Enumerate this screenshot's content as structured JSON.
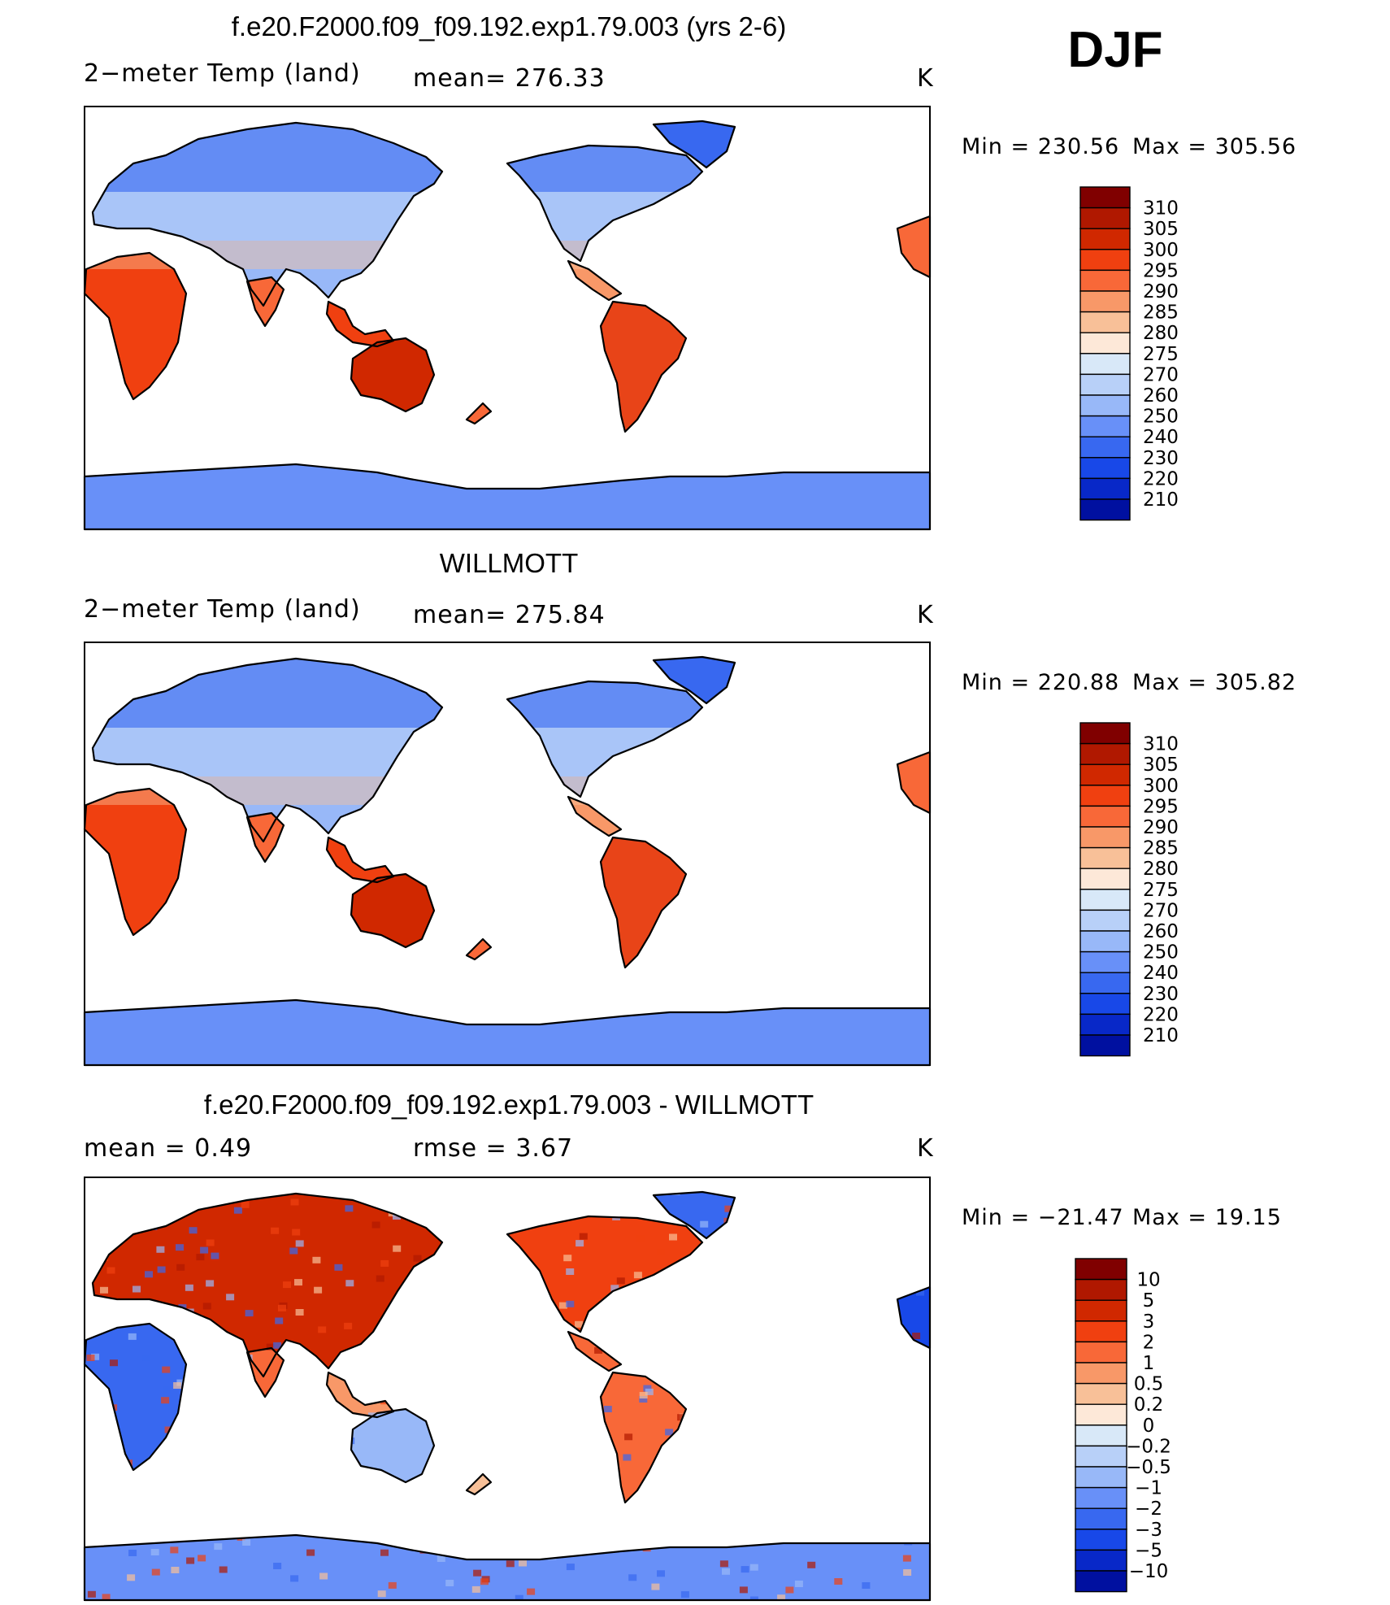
{
  "season": "DJF",
  "units": "K",
  "colors": {
    "absolute_scale": [
      "#800000",
      "#b01800",
      "#d02800",
      "#f04010",
      "#f86838",
      "#f89868",
      "#f8c098",
      "#fde8d8",
      "#d8e8f8",
      "#b8d0f8",
      "#98b8f8",
      "#6890f8",
      "#3868f0",
      "#1848e8",
      "#0828c8",
      "#0010a0",
      "#000080"
    ],
    "difference_scale": [
      "#800000",
      "#b01800",
      "#d02800",
      "#f04010",
      "#f86838",
      "#f89868",
      "#f8c098",
      "#fde8d8",
      "#d8e8f8",
      "#b8d0f8",
      "#98b8f8",
      "#6890f8",
      "#3868f0",
      "#1848e8",
      "#0828c8",
      "#0010a0",
      "#000080"
    ]
  },
  "panels": [
    {
      "title": "f.e20.F2000.f09_f09.192.exp1.79.003 (yrs 2-6)",
      "left_label": "2−meter Temp (land)",
      "center_label": "mean= 276.33",
      "units": "K",
      "min_label": "Min  =  230.56",
      "max_label": "Max  =  305.56",
      "colorbar_ticks": [
        "310",
        "305",
        "300",
        "295",
        "290",
        "285",
        "280",
        "275",
        "270",
        "260",
        "250",
        "240",
        "230",
        "220",
        "210"
      ],
      "field": "model"
    },
    {
      "title": "WILLMOTT",
      "left_label": "2−meter Temp (land)",
      "center_label": "mean= 275.84",
      "units": "K",
      "min_label": "Min  =  220.88",
      "max_label": "Max  =  305.82",
      "colorbar_ticks": [
        "310",
        "305",
        "300",
        "295",
        "290",
        "285",
        "280",
        "275",
        "270",
        "260",
        "250",
        "240",
        "230",
        "220",
        "210"
      ],
      "field": "obs"
    },
    {
      "title": "f.e20.F2000.f09_f09.192.exp1.79.003 - WILLMOTT",
      "left_label": "mean  =     0.49",
      "center_label": "rmse  =     3.67",
      "units": "K",
      "min_label": "Min  =  −21.47",
      "max_label": "Max  =    19.15",
      "colorbar_ticks": [
        "10",
        "5",
        "3",
        "2",
        "1",
        "0.5",
        "0.2",
        "0",
        "−0.2",
        "−0.5",
        "−1",
        "−2",
        "−3",
        "−5",
        "−10"
      ],
      "field": "diff"
    }
  ]
}
